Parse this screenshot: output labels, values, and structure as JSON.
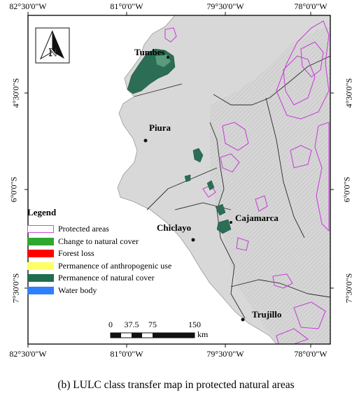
{
  "map": {
    "lon_ticks": [
      "82°30'0\"W",
      "81°0'0\"W",
      "79°30'0\"W",
      "78°0'0\"W"
    ],
    "lat_ticks": [
      "4°30'0\"S",
      "6°0'0\"S",
      "7°30'0\"S"
    ],
    "places": {
      "tumbes": "Tumbes",
      "piura": "Piura",
      "chiclayo": "Chiclayo",
      "cajamarca": "Cajamarca",
      "trujillo": "Trujillo"
    },
    "north_arrow": "N",
    "north_arrow_icon": "north-arrow-icon"
  },
  "legend": {
    "title": "Legend",
    "items": [
      {
        "label": "Protected areas",
        "color": "#d24bd8",
        "style": "outline"
      },
      {
        "label": "Change to natural cover",
        "color": "#2fa82f",
        "style": "fill"
      },
      {
        "label": "Forest loss",
        "color": "#ff0000",
        "style": "fill"
      },
      {
        "label": "Permanence of anthropogenic use",
        "color": "#ffff66",
        "style": "fill"
      },
      {
        "label": "Permanence of natural cover",
        "color": "#1f6e4e",
        "style": "fill"
      },
      {
        "label": "Water body",
        "color": "#2f80ff",
        "style": "fill"
      }
    ]
  },
  "scale_bar": {
    "ticks": [
      "0",
      "37.5",
      "75",
      "150"
    ],
    "unit": "km"
  },
  "caption": "(b) LULC class transfer map in protected natural areas",
  "colors": {
    "land": "#d9d9d9",
    "sea": "#ffffff",
    "protected_outline": "#c845d6",
    "natural_cover": "#2b6e55"
  }
}
